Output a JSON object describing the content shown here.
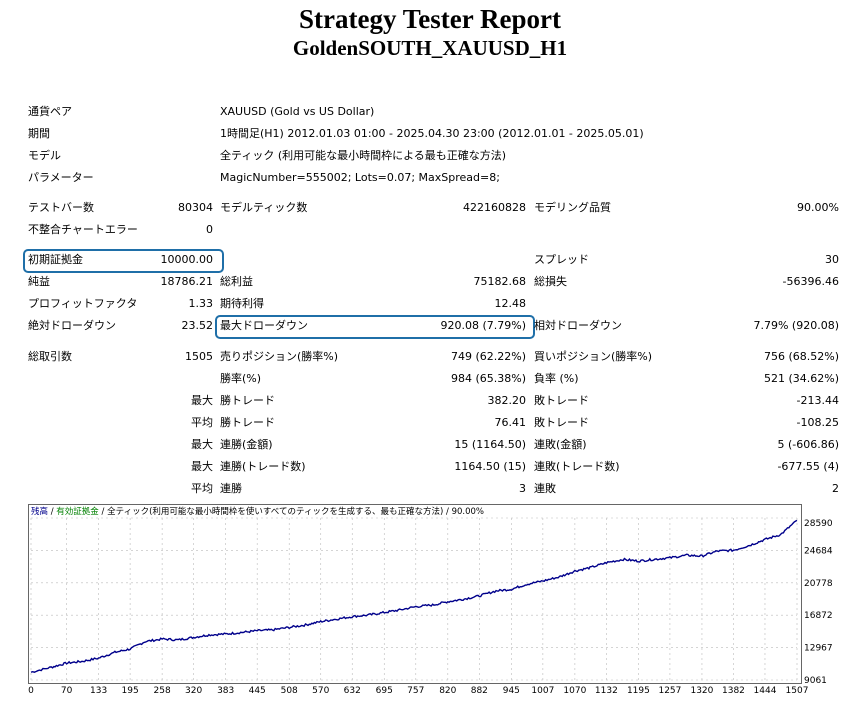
{
  "title": "Strategy Tester Report",
  "subtitle": "GoldenSOUTH_XAUUSD_H1",
  "settings": [
    {
      "label": "通貨ペア",
      "value": "XAUUSD (Gold vs US Dollar)"
    },
    {
      "label": "期間",
      "value": "1時間足(H1) 2012.01.03 01:00 - 2025.04.30 23:00 (2012.01.01 - 2025.05.01)"
    },
    {
      "label": "モデル",
      "value": "全ティック (利用可能な最小時間枠による最も正確な方法)"
    },
    {
      "label": "パラメーター",
      "value": "MagicNumber=555002; Lots=0.07; MaxSpread=8;"
    }
  ],
  "stats": {
    "bars_label": "テストバー数",
    "bars_value": "80304",
    "ticks_label": "モデルティック数",
    "ticks_value": "422160828",
    "quality_label": "モデリング品質",
    "quality_value": "90.00%",
    "mismatch_label": "不整合チャートエラー",
    "mismatch_value": "0",
    "deposit_label": "初期証拠金",
    "deposit_value": "10000.00",
    "spread_label": "スプレッド",
    "spread_value": "30",
    "net_label": "純益",
    "net_value": "18786.21",
    "gross_profit_label": "総利益",
    "gross_profit_value": "75182.68",
    "gross_loss_label": "総損失",
    "gross_loss_value": "-56396.46",
    "pf_label": "プロフィットファクタ",
    "pf_value": "1.33",
    "expected_label": "期待利得",
    "expected_value": "12.48",
    "abs_dd_label": "絶対ドローダウン",
    "abs_dd_value": "23.52",
    "max_dd_label": "最大ドローダウン",
    "max_dd_value": "920.08 (7.79%)",
    "rel_dd_label": "相対ドローダウン",
    "rel_dd_value": "7.79% (920.08)",
    "trades_label": "総取引数",
    "trades_value": "1505",
    "short_label": "売りポジション(勝率%)",
    "short_value": "749 (62.22%)",
    "long_label": "買いポジション(勝率%)",
    "long_value": "756 (68.52%)",
    "winrate_label": "勝率(%)",
    "winrate_value": "984 (65.38%)",
    "lossrate_label": "負率 (%)",
    "lossrate_value": "521 (34.62%)",
    "max_prefix": "最大",
    "avg_prefix": "平均",
    "largest_win_label": "勝トレード",
    "largest_win_value": "382.20",
    "largest_loss_label": "敗トレード",
    "largest_loss_value": "-213.44",
    "avg_win_label": "勝トレード",
    "avg_win_value": "76.41",
    "avg_loss_label": "敗トレード",
    "avg_loss_value": "-108.25",
    "max_consec_wins_label": "連勝(金額)",
    "max_consec_wins_value": "15 (1164.50)",
    "max_consec_losses_label": "連敗(金額)",
    "max_consec_losses_value": "5 (-606.86)",
    "max_consec_profit_label": "連勝(トレード数)",
    "max_consec_profit_value": "1164.50 (15)",
    "max_consec_loss_label": "連敗(トレード数)",
    "max_consec_loss_value": "-677.55 (4)",
    "avg_consec_wins_label": "連勝",
    "avg_consec_wins_value": "3",
    "avg_consec_losses_label": "連敗",
    "avg_consec_losses_value": "2"
  },
  "chart_header": {
    "part1": "残高",
    "sep1": " / ",
    "part2": "有効証拠金",
    "sep2": " / ",
    "part3": "全ティック(利用可能な最小時間枠を使いすべてのティックを生成する、最も正確な方法)",
    "sep3": " / ",
    "part4": "90.00%"
  },
  "colors": {
    "balance_line": "#00008b",
    "highlight_box": "#1f6fa8",
    "grid": "#bbbbbb"
  },
  "chart_data": {
    "type": "line",
    "title": "",
    "xlabel": "",
    "ylabel": "",
    "x_ticks": [
      "0",
      "70",
      "133",
      "195",
      "258",
      "320",
      "383",
      "445",
      "508",
      "570",
      "632",
      "695",
      "757",
      "820",
      "882",
      "945",
      "1007",
      "1070",
      "1132",
      "1195",
      "1257",
      "1320",
      "1382",
      "1444",
      "1507"
    ],
    "y_ticks": [
      "28590",
      "24684",
      "20778",
      "16872",
      "12967",
      "9061"
    ],
    "xlim": [
      0,
      1507
    ],
    "ylim": [
      9061,
      28590
    ],
    "grid": true,
    "series": [
      {
        "x": [
          0,
          40,
          70,
          100,
          133,
          165,
          195,
          225,
          258,
          290,
          320,
          350,
          383,
          415,
          445,
          475,
          508,
          540,
          570,
          600,
          632,
          665,
          695,
          725,
          757,
          790,
          820,
          850,
          882,
          915,
          945,
          975,
          1007,
          1040,
          1070,
          1100,
          1132,
          1165,
          1195,
          1225,
          1257,
          1290,
          1320,
          1350,
          1382,
          1414,
          1444,
          1475,
          1507
        ],
        "y": [
          10000,
          10600,
          11100,
          11300,
          11700,
          12400,
          12800,
          13700,
          14000,
          13900,
          14200,
          14500,
          14600,
          14800,
          15000,
          15100,
          15400,
          15700,
          16100,
          16400,
          16700,
          16900,
          17200,
          17500,
          17900,
          18100,
          18500,
          18800,
          19200,
          19800,
          20000,
          20600,
          21000,
          21500,
          22200,
          22600,
          23200,
          23600,
          23400,
          23600,
          23800,
          24100,
          24000,
          24600,
          24700,
          25300,
          26000,
          26600,
          28300
        ]
      }
    ]
  }
}
